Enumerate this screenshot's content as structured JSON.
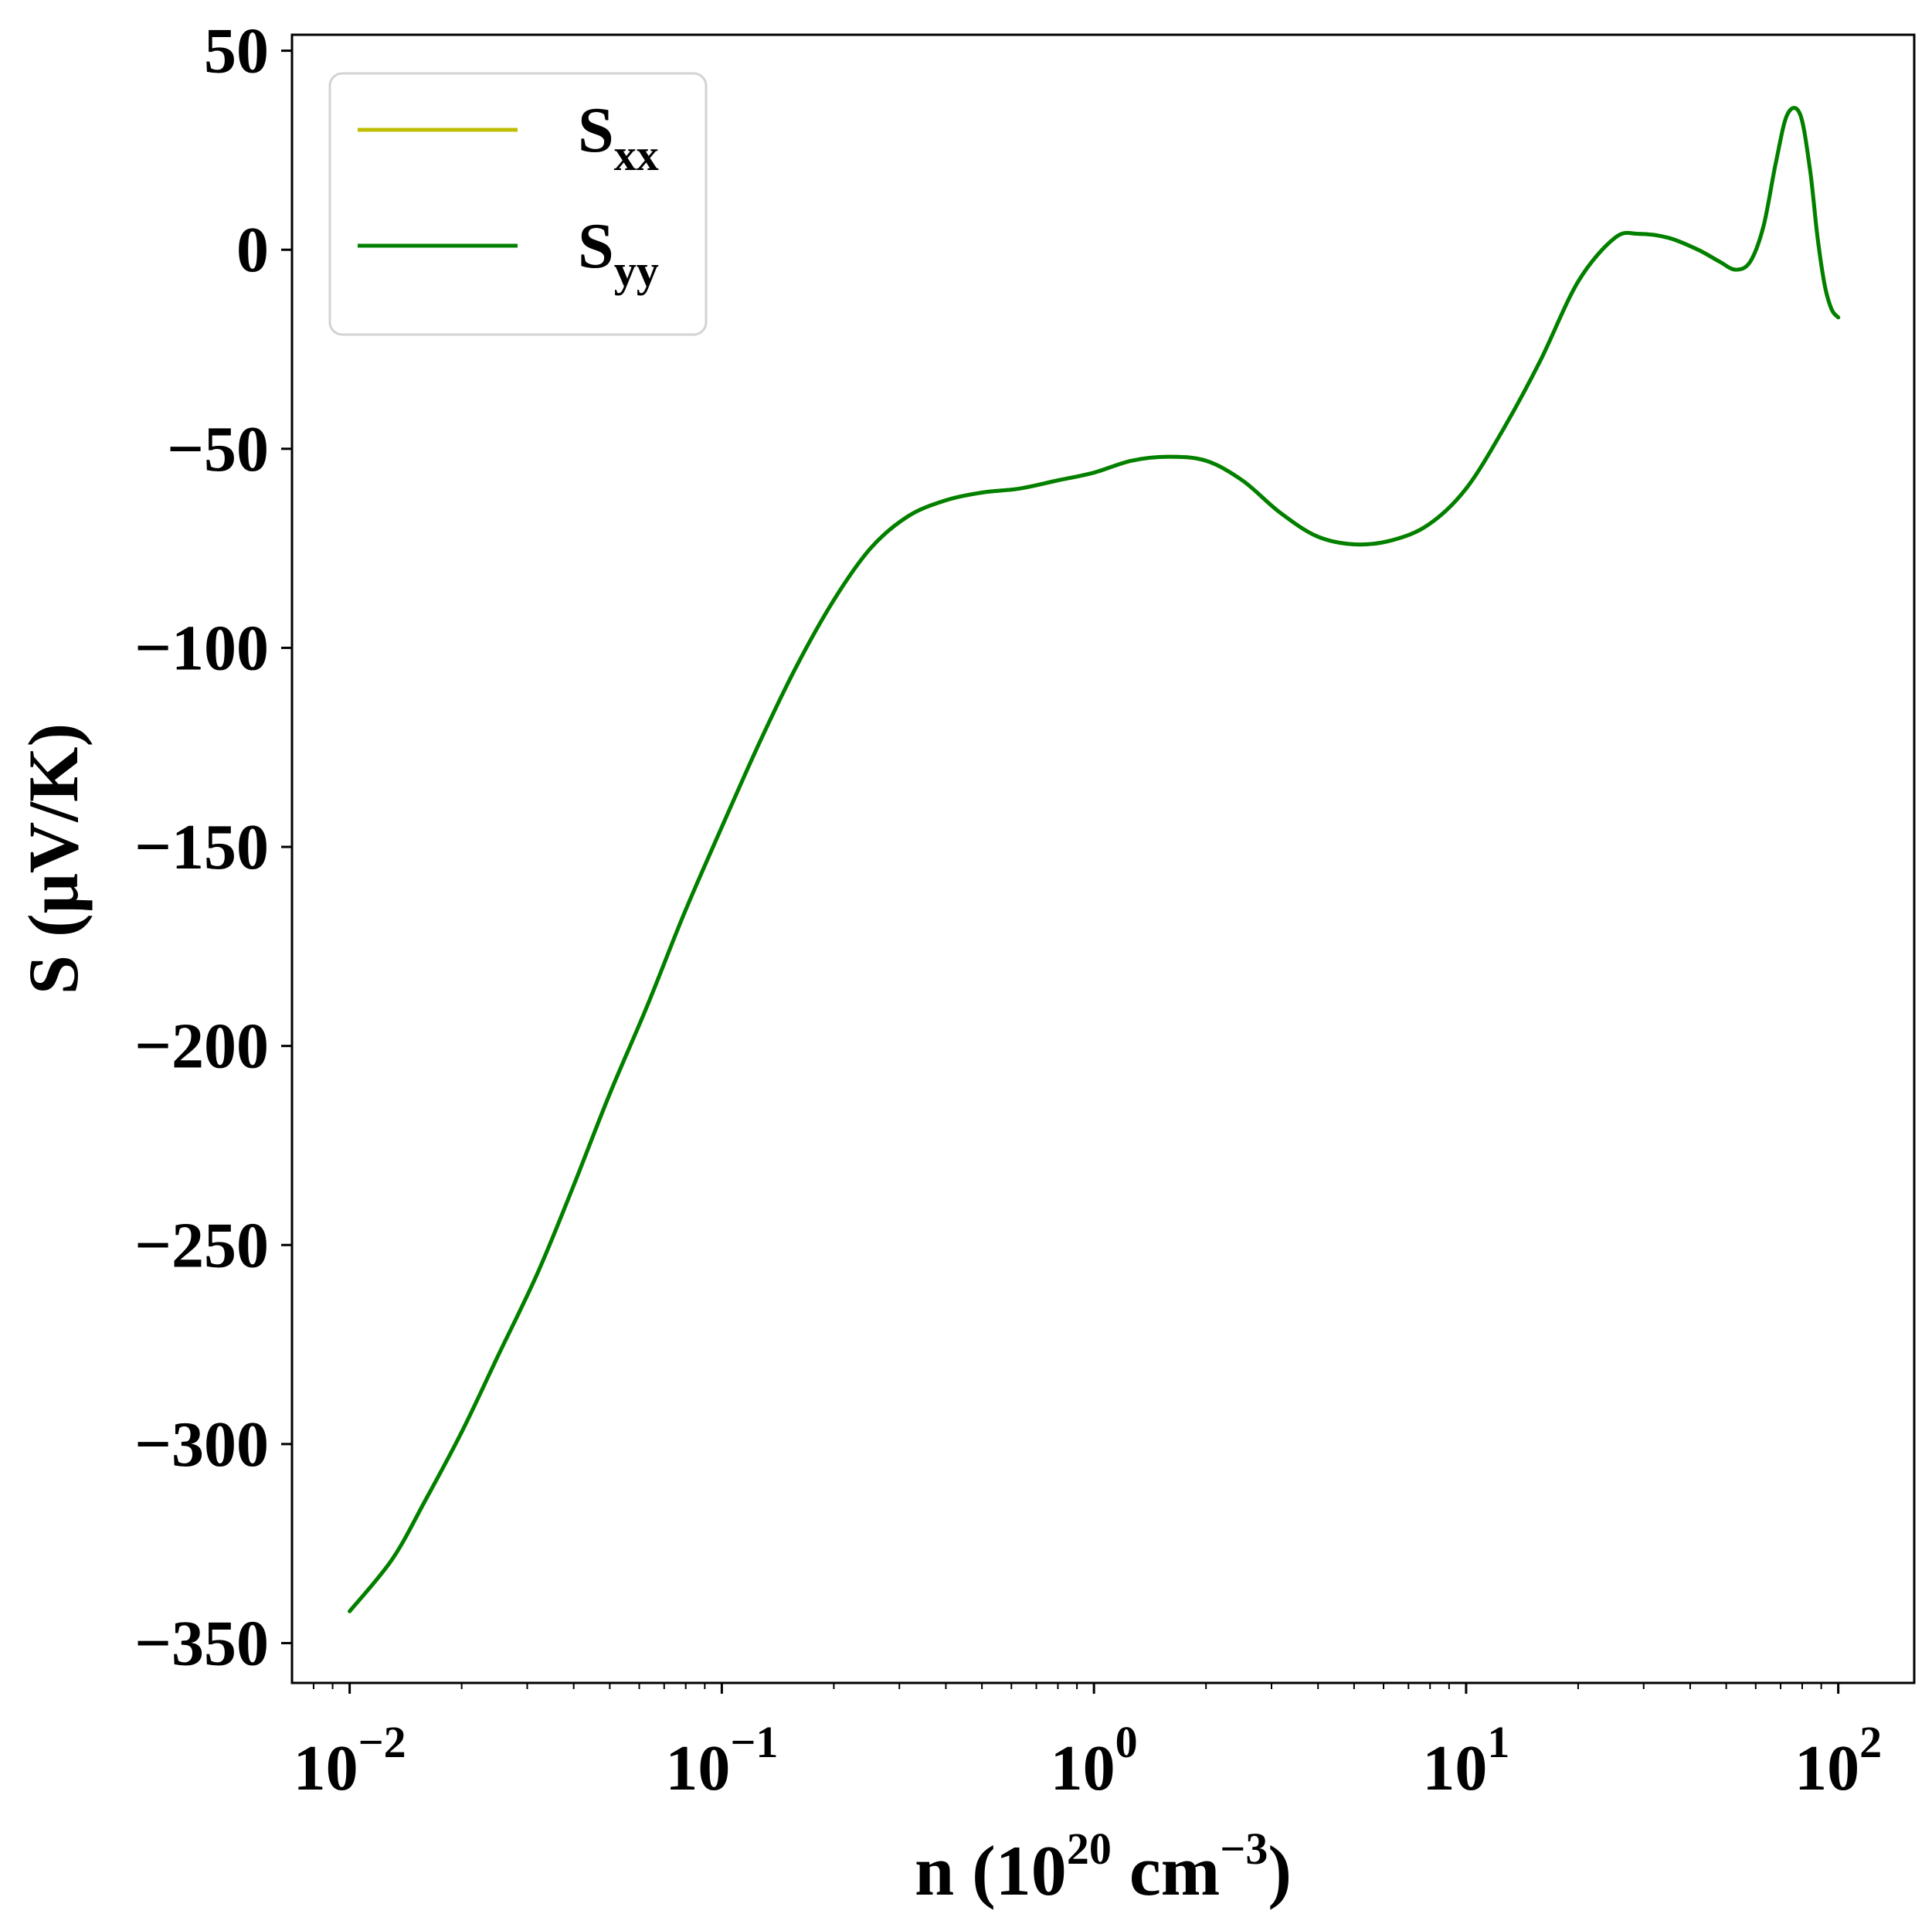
{
  "chart_data": {
    "type": "line",
    "xscale": "log",
    "xlim": [
      0.007,
      160
    ],
    "ylim": [
      -360,
      54
    ],
    "xlabel": {
      "base": "n (10",
      "sup1": "20",
      "mid": " cm",
      "sup2": "−3",
      "end": ")"
    },
    "ylabel": "S (μV/K)",
    "x_ticks": [
      {
        "value": 0.01,
        "base": "10",
        "exp": "−2"
      },
      {
        "value": 0.1,
        "base": "10",
        "exp": "−1"
      },
      {
        "value": 1,
        "base": "10",
        "exp": "0"
      },
      {
        "value": 10,
        "base": "10",
        "exp": "1"
      },
      {
        "value": 100,
        "base": "10",
        "exp": "2"
      }
    ],
    "y_ticks": [
      {
        "value": 50,
        "label": "50"
      },
      {
        "value": 0,
        "label": "0"
      },
      {
        "value": -50,
        "label": "−50"
      },
      {
        "value": -100,
        "label": "−100"
      },
      {
        "value": -150,
        "label": "−150"
      },
      {
        "value": -200,
        "label": "−200"
      },
      {
        "value": -250,
        "label": "−250"
      },
      {
        "value": -300,
        "label": "−300"
      },
      {
        "value": -350,
        "label": "−350"
      }
    ],
    "grid": false,
    "legend": {
      "placement": "top-left"
    },
    "series": [
      {
        "name": "S",
        "name_sub": "xx",
        "color": "#bfbf00",
        "x": [
          0.01,
          0.013,
          0.016,
          0.02,
          0.025,
          0.032,
          0.04,
          0.05,
          0.063,
          0.079,
          0.1,
          0.126,
          0.158,
          0.2,
          0.251,
          0.316,
          0.398,
          0.5,
          0.631,
          0.794,
          1.0,
          1.26,
          1.58,
          2.0,
          2.51,
          3.16,
          3.98,
          5.01,
          6.31,
          7.94,
          10.0,
          12.6,
          15.8,
          20.0,
          25.1,
          29.0,
          35.0,
          42.0,
          48.0,
          53.0,
          58.0,
          63.0,
          68.0,
          73.0,
          79.0,
          84.0,
          88.0,
          92.0,
          96.0,
          100.0
        ],
        "y": [
          -342,
          -329,
          -314,
          -297,
          -278,
          -257,
          -235,
          -212,
          -190,
          -167,
          -145,
          -124,
          -105,
          -88,
          -75,
          -67,
          -63,
          -61,
          -60,
          -58,
          -56,
          -53,
          -52,
          -53,
          -58,
          -66,
          -72,
          -74,
          -73,
          -69,
          -60,
          -45,
          -28,
          -8,
          3,
          4,
          3,
          0,
          -3,
          -5,
          -3,
          6,
          22,
          34,
          34,
          20,
          3,
          -9,
          -15,
          -17
        ]
      },
      {
        "name": "S",
        "name_sub": "yy",
        "color": "#008000",
        "x": [
          0.01,
          0.013,
          0.016,
          0.02,
          0.025,
          0.032,
          0.04,
          0.05,
          0.063,
          0.079,
          0.1,
          0.126,
          0.158,
          0.2,
          0.251,
          0.316,
          0.398,
          0.5,
          0.631,
          0.794,
          1.0,
          1.26,
          1.58,
          2.0,
          2.51,
          3.16,
          3.98,
          5.01,
          6.31,
          7.94,
          10.0,
          12.6,
          15.8,
          20.0,
          25.1,
          29.0,
          35.0,
          42.0,
          48.0,
          53.0,
          58.0,
          63.0,
          68.0,
          73.0,
          79.0,
          84.0,
          88.0,
          92.0,
          96.0,
          100.0
        ],
        "y": [
          -342,
          -329,
          -314,
          -297,
          -278,
          -257,
          -235,
          -212,
          -190,
          -167,
          -145,
          -124,
          -105,
          -88,
          -75,
          -67,
          -63,
          -61,
          -60,
          -58,
          -56,
          -53,
          -52,
          -53,
          -58,
          -66,
          -72,
          -74,
          -73,
          -69,
          -60,
          -45,
          -28,
          -8,
          3,
          4,
          3,
          0,
          -3,
          -5,
          -3,
          6,
          22,
          34,
          34,
          20,
          3,
          -9,
          -15,
          -17
        ]
      }
    ]
  }
}
